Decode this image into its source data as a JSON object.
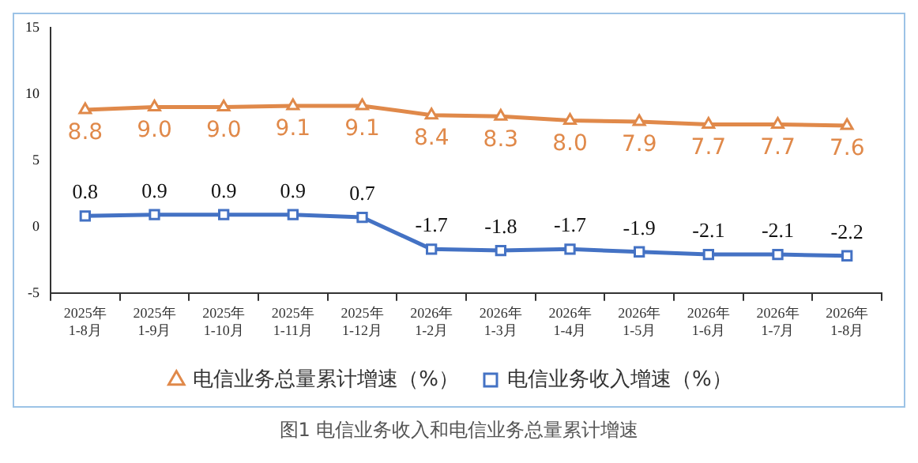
{
  "chart_data": {
    "type": "line",
    "categories": [
      "2025年\n1-8月",
      "2025年\n1-9月",
      "2025年\n1-10月",
      "2025年\n1-11月",
      "2025年\n1-12月",
      "2026年\n1-2月",
      "2026年\n1-3月",
      "2026年\n1-4月",
      "2026年\n1-5月",
      "2026年\n1-6月",
      "2026年\n1-7月",
      "2026年\n1-8月"
    ],
    "series": [
      {
        "name": "电信业务总量累计增速（%）",
        "color": "#e0894a",
        "marker": "triangle",
        "values": [
          8.8,
          9.0,
          9.0,
          9.1,
          9.1,
          8.4,
          8.3,
          8.0,
          7.9,
          7.7,
          7.7,
          7.6
        ],
        "value_labels": [
          "8.8",
          "9.0",
          "9.0",
          "9.1",
          "9.1",
          "8.4",
          "8.3",
          "8.0",
          "7.9",
          "7.7",
          "7.7",
          "7.6"
        ]
      },
      {
        "name": "电信业务收入增速（%）",
        "color": "#4472c4",
        "marker": "square",
        "values": [
          0.8,
          0.9,
          0.9,
          0.9,
          0.7,
          -1.7,
          -1.8,
          -1.7,
          -1.9,
          -2.1,
          -2.1,
          -2.2
        ],
        "value_labels": [
          "0.8",
          "0.9",
          "0.9",
          "0.9",
          "0.7",
          "-1.7",
          "-1.8",
          "-1.7",
          "-1.9",
          "-2.1",
          "-2.1",
          "-2.2"
        ]
      }
    ],
    "ylim": [
      -5,
      15
    ],
    "yticks": [
      -5,
      0,
      5,
      10,
      15
    ],
    "grid": false,
    "legend": "bottom",
    "annotations": [
      "图1 电信业务收入和电信业务总量累计增速"
    ]
  }
}
